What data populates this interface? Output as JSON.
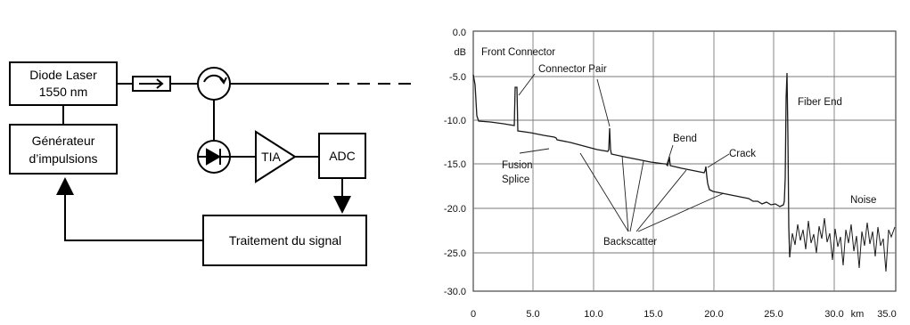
{
  "block_diagram": {
    "laser_line1": "Diode Laser",
    "laser_line2": "1550 nm",
    "generator_line1": "Générateur",
    "generator_line2": "d’impulsions",
    "tia_label": "TIA",
    "adc_label": "ADC",
    "processing_label": "Traitement du signal"
  },
  "otdr_plot": {
    "y_unit": "dB",
    "x_unit": "km",
    "y_ticks": [
      "0.0",
      "-5.0",
      "-10.0",
      "-15.0",
      "-20.0",
      "-25.0",
      "-30.0"
    ],
    "x_ticks": [
      "0",
      "5.0",
      "10.0",
      "15.0",
      "20.0",
      "25.0",
      "30.0",
      "35.0"
    ],
    "annotations": {
      "front_connector": "Front Connector",
      "connector_pair": "Connector Pair",
      "fiber_end": "Fiber End",
      "bend": "Bend",
      "crack": "Crack",
      "fusion": "Fusion",
      "splice": "Splice",
      "noise": "Noise",
      "backscatter": "Backscatter"
    }
  },
  "colors": {
    "line": "#000000",
    "grid": "#777777",
    "trace": "#1a1a1a"
  }
}
